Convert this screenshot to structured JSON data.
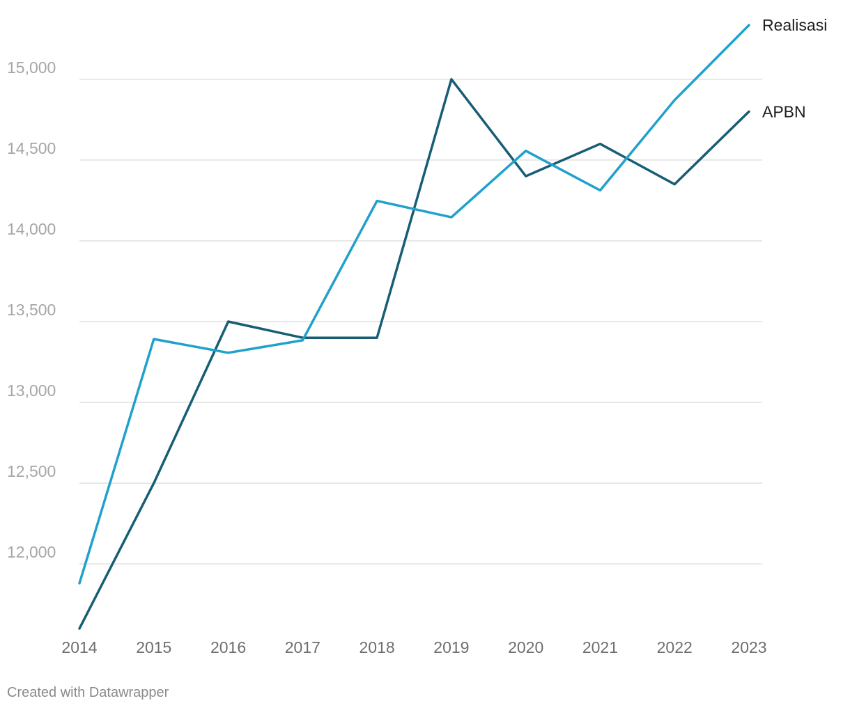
{
  "chart_data": {
    "type": "line",
    "title": "",
    "xlabel": "",
    "ylabel": "",
    "x": [
      "2014",
      "2015",
      "2016",
      "2017",
      "2018",
      "2019",
      "2020",
      "2021",
      "2022",
      "2023"
    ],
    "ylim": [
      11600,
      15400
    ],
    "yticks": [
      12000,
      12500,
      13000,
      13500,
      14000,
      14500,
      15000
    ],
    "ytick_labels": [
      "12,000",
      "12,500",
      "13,000",
      "13,500",
      "14,000",
      "14,500",
      "15,000"
    ],
    "grid": true,
    "legend": "direct labels at line ends (right)",
    "series": [
      {
        "name": "Realisasi",
        "color": "#1fa1cc",
        "values": [
          11880,
          13392,
          13307,
          13384,
          14247,
          14146,
          14557,
          14312,
          14871,
          15335
        ]
      },
      {
        "name": "APBN",
        "color": "#175e75",
        "values": [
          11600,
          12500,
          13500,
          13400,
          13400,
          15000,
          14400,
          14600,
          14350,
          14800
        ]
      }
    ]
  },
  "footer": {
    "credit": "Created with Datawrapper"
  }
}
